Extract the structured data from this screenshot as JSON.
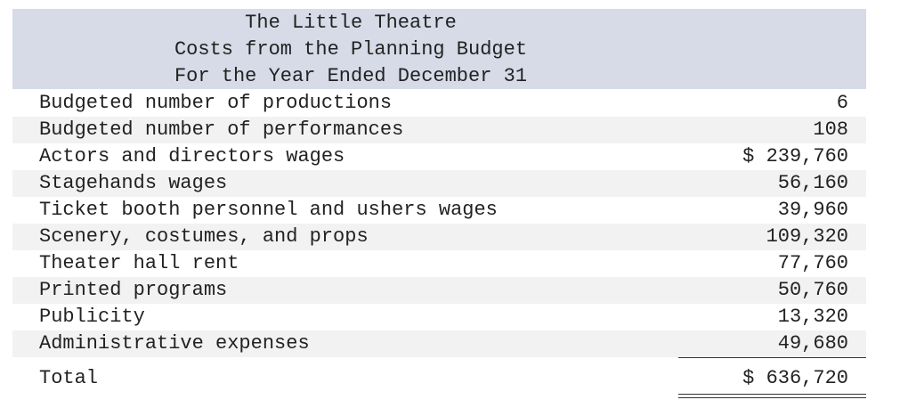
{
  "header": {
    "lines": [
      "The Little Theatre",
      "Costs from the Planning Budget",
      "For the Year Ended December 31"
    ]
  },
  "table": {
    "rows": [
      [
        "Budgeted number of productions",
        "6"
      ],
      [
        "Budgeted number of performances",
        "108"
      ],
      [
        "Actors and directors wages",
        "$ 239,760"
      ],
      [
        "Stagehands wages",
        "56,160"
      ],
      [
        "Ticket booth personnel and ushers wages",
        "39,960"
      ],
      [
        "Scenery, costumes, and props",
        "109,320"
      ],
      [
        "Theater hall rent",
        "77,760"
      ],
      [
        "Printed programs",
        "50,760"
      ],
      [
        "Publicity",
        "13,320"
      ],
      [
        "Administrative expenses",
        "49,680"
      ]
    ],
    "total": [
      "Total",
      "$ 636,720"
    ]
  }
}
